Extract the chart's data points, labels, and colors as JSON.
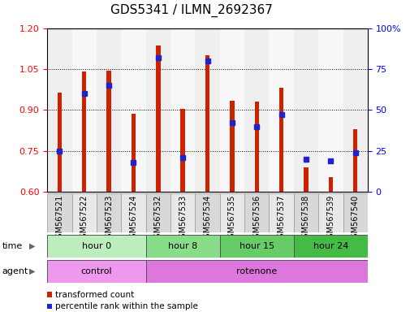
{
  "title": "GDS5341 / ILMN_2692367",
  "samples": [
    "GSM567521",
    "GSM567522",
    "GSM567523",
    "GSM567524",
    "GSM567532",
    "GSM567533",
    "GSM567534",
    "GSM567535",
    "GSM567536",
    "GSM567537",
    "GSM567538",
    "GSM567539",
    "GSM567540"
  ],
  "transformed_count": [
    0.965,
    1.04,
    1.045,
    0.885,
    1.135,
    0.905,
    1.1,
    0.935,
    0.93,
    0.98,
    0.69,
    0.655,
    0.83
  ],
  "percentile_rank": [
    25,
    60,
    65,
    18,
    82,
    21,
    80,
    42,
    40,
    47,
    20,
    19,
    24
  ],
  "ylim_left": [
    0.6,
    1.2
  ],
  "ylim_right": [
    0,
    100
  ],
  "yticks_left": [
    0.6,
    0.75,
    0.9,
    1.05,
    1.2
  ],
  "yticks_right": [
    0,
    25,
    50,
    75,
    100
  ],
  "bar_color": "#cc2200",
  "dot_color": "#2222cc",
  "bar_bottom": 0.6,
  "time_groups": [
    {
      "label": "hour 0",
      "start": 0,
      "end": 4,
      "color": "#bbeebc"
    },
    {
      "label": "hour 8",
      "start": 4,
      "end": 7,
      "color": "#88dd88"
    },
    {
      "label": "hour 15",
      "start": 7,
      "end": 10,
      "color": "#66cc66"
    },
    {
      "label": "hour 24",
      "start": 10,
      "end": 13,
      "color": "#44bb44"
    }
  ],
  "agent_groups": [
    {
      "label": "control",
      "start": 0,
      "end": 4,
      "color": "#ee99ee"
    },
    {
      "label": "rotenone",
      "start": 4,
      "end": 13,
      "color": "#dd77dd"
    }
  ],
  "legend_items": [
    {
      "color": "#cc2200",
      "label": "transformed count"
    },
    {
      "color": "#2222cc",
      "label": "percentile rank within the sample"
    }
  ],
  "bar_width": 0.18,
  "dot_size": 4,
  "title_fontsize": 11,
  "tick_fontsize": 8,
  "label_fontsize": 7,
  "row_fontsize": 8,
  "legend_fontsize": 7.5
}
